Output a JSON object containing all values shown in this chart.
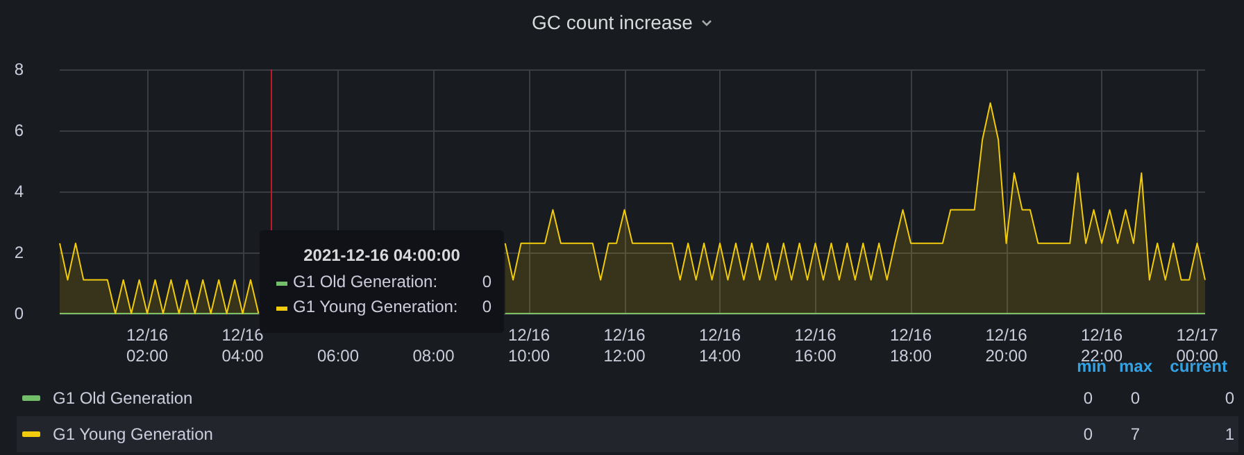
{
  "chart_data": {
    "type": "area",
    "title": "GC count increase",
    "x": [
      "2021-12-16T00:10",
      "2021-12-16T00:20",
      "2021-12-16T00:30",
      "2021-12-16T00:40",
      "2021-12-16T00:50",
      "2021-12-16T01:00",
      "2021-12-16T01:10",
      "2021-12-16T01:20",
      "2021-12-16T01:30",
      "2021-12-16T01:40",
      "2021-12-16T01:50",
      "2021-12-16T02:00",
      "2021-12-16T02:10",
      "2021-12-16T02:20",
      "2021-12-16T02:30",
      "2021-12-16T02:40",
      "2021-12-16T02:50",
      "2021-12-16T03:00",
      "2021-12-16T03:10",
      "2021-12-16T03:20",
      "2021-12-16T03:30",
      "2021-12-16T03:40",
      "2021-12-16T03:50",
      "2021-12-16T04:00",
      "2021-12-16T04:10",
      "2021-12-16T04:20",
      "2021-12-16T04:30",
      "2021-12-16T04:40",
      "2021-12-16T04:50",
      "2021-12-16T05:00",
      "2021-12-16T05:10",
      "2021-12-16T05:20",
      "2021-12-16T05:30",
      "2021-12-16T05:40",
      "2021-12-16T05:50",
      "2021-12-16T06:00",
      "2021-12-16T06:10",
      "2021-12-16T06:20",
      "2021-12-16T06:30",
      "2021-12-16T06:40",
      "2021-12-16T06:50",
      "2021-12-16T07:00",
      "2021-12-16T07:10",
      "2021-12-16T07:20",
      "2021-12-16T07:30",
      "2021-12-16T07:40",
      "2021-12-16T07:50",
      "2021-12-16T08:00",
      "2021-12-16T08:10",
      "2021-12-16T08:20",
      "2021-12-16T08:30",
      "2021-12-16T08:40",
      "2021-12-16T08:50",
      "2021-12-16T09:00",
      "2021-12-16T09:10",
      "2021-12-16T09:20",
      "2021-12-16T09:30",
      "2021-12-16T09:40",
      "2021-12-16T09:50",
      "2021-12-16T10:00",
      "2021-12-16T10:10",
      "2021-12-16T10:20",
      "2021-12-16T10:30",
      "2021-12-16T10:40",
      "2021-12-16T10:50",
      "2021-12-16T11:00",
      "2021-12-16T11:10",
      "2021-12-16T11:20",
      "2021-12-16T11:30",
      "2021-12-16T11:40",
      "2021-12-16T11:50",
      "2021-12-16T12:00",
      "2021-12-16T12:10",
      "2021-12-16T12:20",
      "2021-12-16T12:30",
      "2021-12-16T12:40",
      "2021-12-16T12:50",
      "2021-12-16T13:00",
      "2021-12-16T13:10",
      "2021-12-16T13:20",
      "2021-12-16T13:30",
      "2021-12-16T13:40",
      "2021-12-16T13:50",
      "2021-12-16T14:00",
      "2021-12-16T14:10",
      "2021-12-16T14:20",
      "2021-12-16T14:30",
      "2021-12-16T14:40",
      "2021-12-16T14:50",
      "2021-12-16T15:00",
      "2021-12-16T15:10",
      "2021-12-16T15:20",
      "2021-12-16T15:30",
      "2021-12-16T15:40",
      "2021-12-16T15:50",
      "2021-12-16T16:00",
      "2021-12-16T16:10",
      "2021-12-16T16:20",
      "2021-12-16T16:30",
      "2021-12-16T16:40",
      "2021-12-16T16:50",
      "2021-12-16T17:00",
      "2021-12-16T17:10",
      "2021-12-16T17:20",
      "2021-12-16T17:30",
      "2021-12-16T17:40",
      "2021-12-16T17:50",
      "2021-12-16T18:00",
      "2021-12-16T18:10",
      "2021-12-16T18:20",
      "2021-12-16T18:30",
      "2021-12-16T18:40",
      "2021-12-16T18:50",
      "2021-12-16T19:00",
      "2021-12-16T19:10",
      "2021-12-16T19:20",
      "2021-12-16T19:30",
      "2021-12-16T19:40",
      "2021-12-16T19:50",
      "2021-12-16T20:00",
      "2021-12-16T20:10",
      "2021-12-16T20:20",
      "2021-12-16T20:30",
      "2021-12-16T20:40",
      "2021-12-16T20:50",
      "2021-12-16T21:00",
      "2021-12-16T21:10",
      "2021-12-16T21:20",
      "2021-12-16T21:30",
      "2021-12-16T21:40",
      "2021-12-16T21:50",
      "2021-12-16T22:00",
      "2021-12-16T22:10",
      "2021-12-16T22:20",
      "2021-12-16T22:30",
      "2021-12-16T22:40",
      "2021-12-16T22:50",
      "2021-12-16T23:00",
      "2021-12-16T23:10",
      "2021-12-16T23:20",
      "2021-12-16T23:30",
      "2021-12-16T23:40",
      "2021-12-16T23:50",
      "2021-12-17T00:00",
      "2021-12-17T00:10"
    ],
    "series": [
      {
        "name": "G1 Old Generation",
        "type": "line",
        "color": "#73bf69",
        "values": [
          0,
          0,
          0,
          0,
          0,
          0,
          0,
          0,
          0,
          0,
          0,
          0,
          0,
          0,
          0,
          0,
          0,
          0,
          0,
          0,
          0,
          0,
          0,
          0,
          0,
          0,
          null,
          null,
          null,
          null,
          null,
          null,
          null,
          null,
          null,
          null,
          null,
          null,
          null,
          null,
          null,
          null,
          null,
          null,
          null,
          null,
          null,
          null,
          null,
          null,
          null,
          null,
          null,
          null,
          null,
          null,
          0,
          0,
          0,
          0,
          0,
          0,
          0,
          0,
          0,
          0,
          0,
          0,
          0,
          0,
          0,
          0,
          0,
          0,
          0,
          0,
          0,
          0,
          0,
          0,
          0,
          0,
          0,
          0,
          0,
          0,
          0,
          0,
          0,
          0,
          0,
          0,
          0,
          0,
          0,
          0,
          0,
          0,
          0,
          0,
          0,
          0,
          0,
          0,
          0,
          0,
          0,
          0,
          0,
          0,
          0,
          0,
          0,
          0,
          0,
          0,
          0,
          0,
          0,
          0,
          0,
          0,
          0,
          0,
          0,
          0,
          0,
          0,
          0,
          0,
          0,
          0,
          0,
          0,
          0,
          0,
          0,
          0,
          0,
          0,
          0,
          0,
          0,
          0,
          0
        ]
      },
      {
        "name": "G1 Young Generation",
        "color": "#f2cc0c",
        "values": [
          2.3,
          1.1,
          2.3,
          1.1,
          1.1,
          1.1,
          1.1,
          0,
          1.1,
          0,
          1.1,
          0,
          1.1,
          0,
          1.1,
          0,
          1.1,
          0,
          1.1,
          0,
          1.1,
          0,
          1.1,
          0,
          1.1,
          0,
          null,
          null,
          null,
          null,
          null,
          null,
          null,
          null,
          null,
          null,
          null,
          null,
          null,
          null,
          null,
          null,
          null,
          null,
          null,
          null,
          null,
          null,
          null,
          null,
          null,
          null,
          null,
          null,
          null,
          null,
          2.3,
          1.1,
          2.3,
          2.3,
          2.3,
          2.3,
          3.4,
          2.3,
          2.3,
          2.3,
          2.3,
          2.3,
          1.1,
          2.3,
          2.3,
          3.4,
          2.3,
          2.3,
          2.3,
          2.3,
          2.3,
          2.3,
          1.1,
          2.3,
          1.1,
          2.3,
          1.1,
          2.3,
          1.1,
          2.3,
          1.1,
          2.3,
          1.1,
          2.3,
          1.1,
          2.3,
          1.1,
          2.3,
          1.1,
          2.3,
          1.1,
          2.3,
          1.1,
          2.3,
          1.1,
          2.3,
          1.1,
          2.3,
          1.1,
          2.3,
          3.4,
          2.3,
          2.3,
          2.3,
          2.3,
          2.3,
          3.4,
          3.4,
          3.4,
          3.4,
          5.7,
          6.9,
          5.7,
          2.3,
          4.6,
          3.4,
          3.4,
          2.3,
          2.3,
          2.3,
          2.3,
          2.3,
          4.6,
          2.3,
          3.4,
          2.3,
          3.4,
          2.3,
          3.4,
          2.3,
          4.6,
          1.1,
          2.3,
          1.1,
          2.3,
          1.1,
          1.1,
          2.3,
          1.1
        ]
      }
    ],
    "xlim": [
      "2021-12-16T00:10",
      "2021-12-17T00:10"
    ],
    "xticks": [
      {
        "value": "2021-12-16T02:00",
        "label": "12/16\n02:00"
      },
      {
        "value": "2021-12-16T04:00",
        "label": "12/16\n04:00"
      },
      {
        "value": "2021-12-16T06:00",
        "label": "06:00"
      },
      {
        "value": "2021-12-16T08:00",
        "label": "08:00"
      },
      {
        "value": "2021-12-16T10:00",
        "label": "12/16\n10:00"
      },
      {
        "value": "2021-12-16T12:00",
        "label": "12/16\n12:00"
      },
      {
        "value": "2021-12-16T14:00",
        "label": "12/16\n14:00"
      },
      {
        "value": "2021-12-16T16:00",
        "label": "12/16\n16:00"
      },
      {
        "value": "2021-12-16T18:00",
        "label": "12/16\n18:00"
      },
      {
        "value": "2021-12-16T20:00",
        "label": "12/16\n20:00"
      },
      {
        "value": "2021-12-16T22:00",
        "label": "12/16\n22:00"
      },
      {
        "value": "2021-12-17T00:00",
        "label": "12/17\n00:00"
      }
    ],
    "ylim": [
      0,
      8
    ],
    "yticks": [
      0,
      2,
      4,
      6,
      8
    ],
    "grid": true,
    "legend": "bottom",
    "ref_lines": [
      {
        "axis": "x",
        "value": "2021-12-16T04:35",
        "color": "#c4162a"
      }
    ],
    "annotations": [
      "min",
      "max",
      "current",
      "0",
      "0",
      "0",
      "0",
      "7",
      "1",
      "2021-12-16 04:00:00",
      "G1 Old Generation:",
      "0",
      "G1 Young Generation:",
      "0"
    ]
  }
}
